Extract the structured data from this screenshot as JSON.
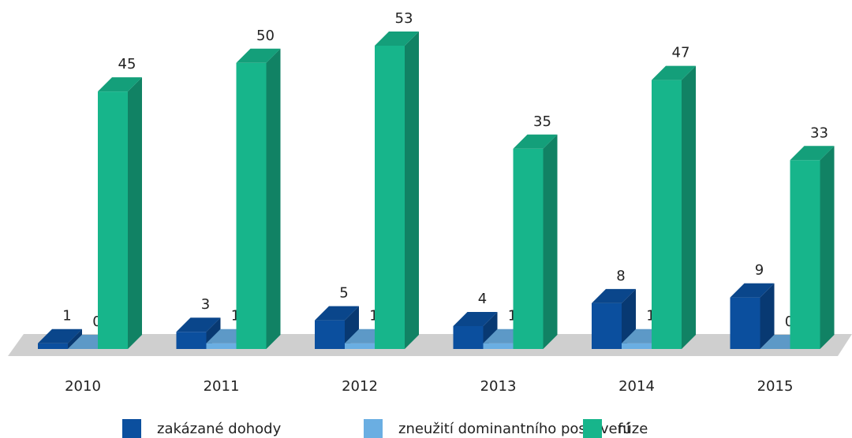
{
  "chart_data": {
    "type": "bar3d",
    "categories": [
      "2010",
      "2011",
      "2012",
      "2013",
      "2014",
      "2015"
    ],
    "series": [
      {
        "name": "zakázané dohody",
        "color": "#0b4f9e",
        "values": [
          1,
          3,
          5,
          4,
          8,
          9
        ]
      },
      {
        "name": "zneužití dominantního postavení",
        "color": "#6aaee2",
        "values": [
          0,
          1,
          1,
          1,
          1,
          0
        ]
      },
      {
        "name": "fúze",
        "color": "#17b58b",
        "values": [
          45,
          50,
          53,
          35,
          47,
          33
        ]
      }
    ]
  }
}
